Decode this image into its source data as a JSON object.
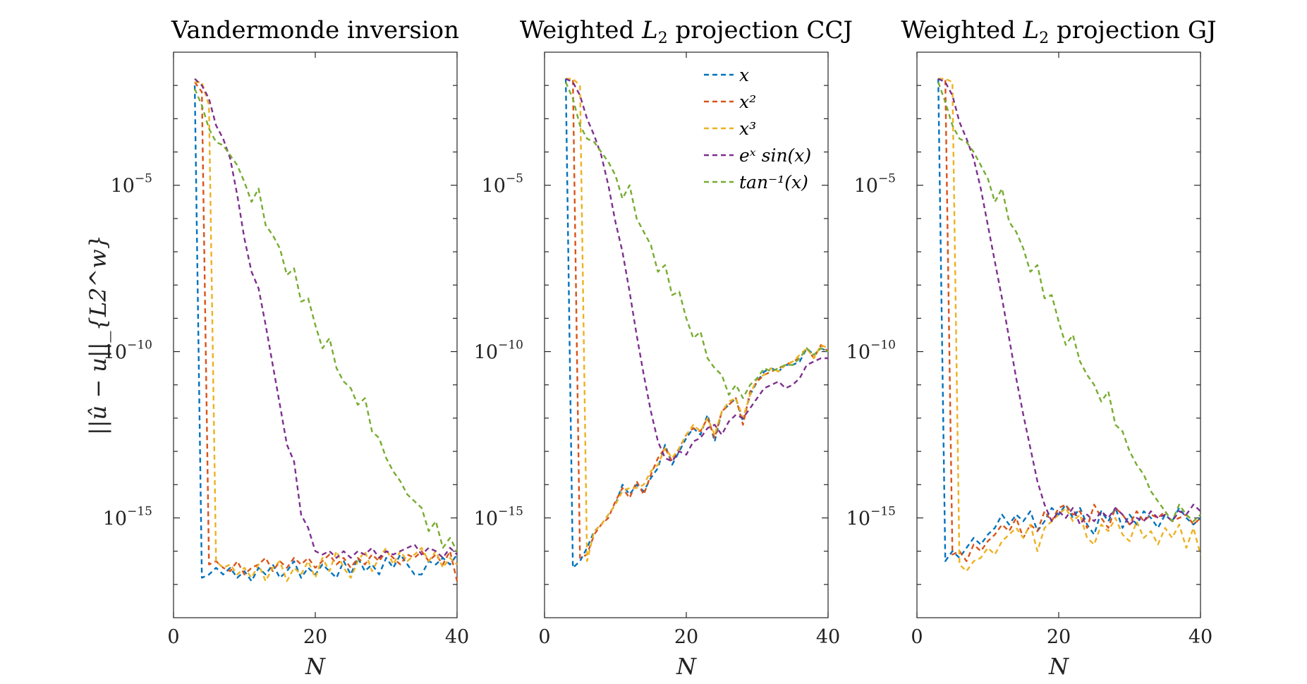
{
  "chart_data": [
    {
      "type": "line",
      "title": "Vandermonde inversion",
      "xlabel": "N",
      "ylabel": "||û − u||_{L2^w}",
      "y_scale": "log",
      "xlim": [
        0,
        40
      ],
      "ylim_exponent": [
        -18,
        -1
      ],
      "x_ticks": [
        "0",
        "20",
        "40"
      ],
      "y_ticks": [
        {
          "base": "10",
          "exp": "−5"
        },
        {
          "base": "10",
          "exp": "−10"
        },
        {
          "base": "10",
          "exp": "−15"
        }
      ],
      "x": [
        3,
        4,
        5,
        6,
        7,
        8,
        9,
        10,
        11,
        12,
        13,
        14,
        15,
        16,
        17,
        18,
        19,
        20,
        21,
        22,
        23,
        24,
        25,
        26,
        27,
        28,
        29,
        30,
        31,
        32,
        33,
        34,
        35,
        36,
        37,
        38,
        39,
        40
      ],
      "series": [
        {
          "name": "x",
          "color": "#0072BD",
          "log10_values": [
            -2.0,
            -16.8,
            -16.7,
            -16.5,
            -16.7,
            -16.5,
            -16.8,
            -16.6,
            -16.9,
            -16.5,
            -16.7,
            -16.4,
            -16.8,
            -16.6,
            -16.3,
            -16.8,
            -16.5,
            -16.7,
            -16.4,
            -16.6,
            -16.8,
            -16.3,
            -16.7,
            -16.2,
            -16.6,
            -16.4,
            -16.7,
            -16.2,
            -16.5,
            -16.1,
            -16.4,
            -16.7,
            -16.7,
            -16.3,
            -16.4,
            -16.2,
            -16.4,
            -16.1
          ]
        },
        {
          "name": "x²",
          "color": "#D95319",
          "log10_values": [
            -1.9,
            -2.2,
            -16.4,
            -16.3,
            -16.5,
            -16.6,
            -16.3,
            -16.7,
            -16.5,
            -16.4,
            -16.2,
            -16.6,
            -16.3,
            -16.5,
            -16.2,
            -16.4,
            -16.2,
            -16.5,
            -16.3,
            -16.1,
            -16.4,
            -16.2,
            -16.5,
            -16.2,
            -16.4,
            -16.1,
            -16.3,
            -16.0,
            -16.2,
            -16.4,
            -16.1,
            -16.2,
            -16.0,
            -16.3,
            -16.1,
            -16.4,
            -16.0,
            -16.9
          ]
        },
        {
          "name": "x³",
          "color": "#EDB120",
          "log10_values": [
            -1.9,
            -1.9,
            -2.6,
            -16.3,
            -16.5,
            -16.4,
            -16.7,
            -16.5,
            -16.8,
            -16.4,
            -16.9,
            -16.5,
            -16.3,
            -16.9,
            -16.5,
            -16.7,
            -16.3,
            -16.8,
            -16.2,
            -16.6,
            -16.0,
            -16.5,
            -16.8,
            -16.3,
            -16.0,
            -16.6,
            -16.2,
            -15.9,
            -16.4,
            -16.0,
            -16.3,
            -16.1,
            -15.9,
            -16.3,
            -16.0,
            -16.5,
            -16.2,
            -16.4
          ]
        },
        {
          "name": "eˣ sin(x)",
          "color": "#7E2F8E",
          "log10_values": [
            -1.8,
            -2.0,
            -2.4,
            -3.2,
            -3.6,
            -4.2,
            -5.3,
            -6.6,
            -7.6,
            -8.1,
            -9.2,
            -10.4,
            -11.6,
            -12.8,
            -13.3,
            -14.9,
            -15.3,
            -16.0,
            -16.1,
            -16.0,
            -16.2,
            -16.0,
            -16.2,
            -16.0,
            -16.1,
            -15.9,
            -16.2,
            -16.0,
            -16.1,
            -16.0,
            -15.9,
            -15.8,
            -16.1,
            -15.9,
            -16.0,
            -16.2,
            -15.9,
            -16.1
          ]
        },
        {
          "name": "tan⁻¹(x)",
          "color": "#77AC30",
          "log10_values": [
            -2.1,
            -2.6,
            -3.3,
            -3.7,
            -3.8,
            -4.1,
            -4.4,
            -4.9,
            -5.5,
            -5.1,
            -6.2,
            -6.5,
            -6.9,
            -7.7,
            -7.5,
            -8.5,
            -8.4,
            -9.2,
            -9.9,
            -9.6,
            -10.5,
            -10.9,
            -11.1,
            -11.6,
            -11.4,
            -12.4,
            -12.6,
            -13.2,
            -13.6,
            -13.9,
            -14.3,
            -14.5,
            -14.7,
            -15.4,
            -15.1,
            -15.9,
            -15.6,
            -16.0
          ]
        }
      ]
    },
    {
      "type": "line",
      "title": "Weighted L2 projection CCJ",
      "xlabel": "N",
      "y_scale": "log",
      "xlim": [
        0,
        40
      ],
      "ylim_exponent": [
        -18,
        -1
      ],
      "x_ticks": [
        "0",
        "20",
        "40"
      ],
      "y_ticks": [
        {
          "base": "10",
          "exp": "−5"
        },
        {
          "base": "10",
          "exp": "−10"
        },
        {
          "base": "10",
          "exp": "−15"
        }
      ],
      "legend_position": "top-right",
      "x": [
        3,
        4,
        5,
        6,
        7,
        8,
        9,
        10,
        11,
        12,
        13,
        14,
        15,
        16,
        17,
        18,
        19,
        20,
        21,
        22,
        23,
        24,
        25,
        26,
        27,
        28,
        29,
        30,
        31,
        32,
        33,
        34,
        35,
        36,
        37,
        38,
        39,
        40
      ],
      "series": [
        {
          "name": "x",
          "color": "#0072BD",
          "log10_values": [
            -1.8,
            -16.5,
            -16.3,
            -15.9,
            -15.4,
            -15.2,
            -14.9,
            -14.6,
            -14.0,
            -14.3,
            -14.0,
            -14.2,
            -13.8,
            -13.5,
            -12.8,
            -13.4,
            -13.0,
            -12.6,
            -12.3,
            -12.5,
            -11.9,
            -12.7,
            -11.8,
            -11.6,
            -11.4,
            -12.1,
            -11.3,
            -10.9,
            -10.6,
            -10.5,
            -10.6,
            -10.4,
            -10.4,
            -10.3,
            -9.9,
            -10.1,
            -9.9,
            -10.0
          ]
        },
        {
          "name": "x²",
          "color": "#D95319",
          "log10_values": [
            -1.8,
            -1.8,
            -16.2,
            -16.1,
            -15.5,
            -15.2,
            -15.0,
            -14.5,
            -14.1,
            -14.4,
            -13.9,
            -14.3,
            -13.7,
            -13.2,
            -12.9,
            -13.3,
            -12.9,
            -12.5,
            -12.3,
            -12.4,
            -12.0,
            -12.6,
            -11.8,
            -11.6,
            -11.4,
            -12.2,
            -11.2,
            -10.9,
            -10.7,
            -10.6,
            -10.5,
            -10.4,
            -10.3,
            -10.2,
            -9.9,
            -10.2,
            -9.8,
            -10.0
          ]
        },
        {
          "name": "x³",
          "color": "#EDB120",
          "log10_values": [
            -1.8,
            -1.8,
            -2.0,
            -16.3,
            -15.4,
            -15.2,
            -14.9,
            -14.6,
            -14.2,
            -14.1,
            -14.1,
            -14.0,
            -13.6,
            -13.4,
            -12.9,
            -13.2,
            -12.9,
            -12.5,
            -12.2,
            -12.4,
            -12.0,
            -12.5,
            -11.8,
            -11.5,
            -11.4,
            -12.0,
            -11.3,
            -10.8,
            -10.7,
            -10.5,
            -10.6,
            -10.4,
            -10.3,
            -10.1,
            -9.9,
            -10.2,
            -9.8,
            -9.9
          ]
        },
        {
          "name": "eˣ sin(x)",
          "color": "#7E2F8E",
          "log10_values": [
            -1.8,
            -1.9,
            -2.3,
            -3.0,
            -3.5,
            -4.1,
            -5.0,
            -6.1,
            -7.0,
            -8.2,
            -9.5,
            -10.7,
            -11.8,
            -12.7,
            -13.2,
            -13.3,
            -13.0,
            -13.1,
            -12.7,
            -12.6,
            -12.3,
            -12.2,
            -12.5,
            -12.1,
            -11.9,
            -12.0,
            -11.7,
            -11.4,
            -11.1,
            -11.0,
            -10.9,
            -11.1,
            -11.0,
            -10.8,
            -10.4,
            -10.3,
            -10.2,
            -10.2
          ]
        },
        {
          "name": "tan⁻¹(x)",
          "color": "#77AC30",
          "log10_values": [
            -1.9,
            -2.4,
            -3.2,
            -3.6,
            -3.7,
            -4.0,
            -4.3,
            -4.7,
            -5.4,
            -5.0,
            -6.0,
            -6.4,
            -6.8,
            -7.6,
            -7.4,
            -8.3,
            -8.2,
            -9.0,
            -9.6,
            -9.4,
            -10.2,
            -10.5,
            -10.7,
            -11.3,
            -11.0,
            -11.4,
            -11.0,
            -10.8,
            -10.5,
            -10.6,
            -10.5,
            -10.4,
            -10.4,
            -10.2,
            -9.9,
            -10.1,
            -9.9,
            -10.0
          ]
        }
      ]
    },
    {
      "type": "line",
      "title": "Weighted L2 projection GJ",
      "xlabel": "N",
      "y_scale": "log",
      "xlim": [
        0,
        40
      ],
      "ylim_exponent": [
        -18,
        -1
      ],
      "x_ticks": [
        "0",
        "20",
        "40"
      ],
      "y_ticks": [
        {
          "base": "10",
          "exp": "−5"
        },
        {
          "base": "10",
          "exp": "−10"
        },
        {
          "base": "10",
          "exp": "−15"
        }
      ],
      "x": [
        3,
        4,
        5,
        6,
        7,
        8,
        9,
        10,
        11,
        12,
        13,
        14,
        15,
        16,
        17,
        18,
        19,
        20,
        21,
        22,
        23,
        24,
        25,
        26,
        27,
        28,
        29,
        30,
        31,
        32,
        33,
        34,
        35,
        36,
        37,
        38,
        39,
        40
      ],
      "series": [
        {
          "name": "x",
          "color": "#0072BD",
          "log10_values": [
            -1.8,
            -16.3,
            -16.0,
            -16.2,
            -15.9,
            -15.6,
            -15.8,
            -15.5,
            -15.3,
            -14.9,
            -15.2,
            -14.9,
            -15.1,
            -14.8,
            -15.4,
            -15.1,
            -14.7,
            -14.9,
            -14.6,
            -15.0,
            -14.7,
            -15.2,
            -15.5,
            -14.8,
            -15.1,
            -14.7,
            -15.3,
            -14.9,
            -15.2,
            -14.8,
            -15.0,
            -15.3,
            -14.9,
            -15.1,
            -14.7,
            -15.0,
            -15.2,
            -15.0
          ]
        },
        {
          "name": "x²",
          "color": "#D95319",
          "log10_values": [
            -1.8,
            -1.8,
            -16.1,
            -16.0,
            -16.3,
            -15.8,
            -16.0,
            -15.7,
            -15.5,
            -15.2,
            -15.4,
            -15.0,
            -15.6,
            -15.2,
            -15.4,
            -14.8,
            -15.1,
            -14.7,
            -14.6,
            -14.9,
            -14.8,
            -15.3,
            -14.6,
            -15.0,
            -15.3,
            -14.7,
            -14.9,
            -15.2,
            -14.8,
            -15.1,
            -14.9,
            -15.0,
            -14.8,
            -15.1,
            -15.0,
            -14.9,
            -15.2,
            -15.0
          ]
        },
        {
          "name": "x³",
          "color": "#EDB120",
          "log10_values": [
            -1.8,
            -1.8,
            -1.9,
            -16.4,
            -16.6,
            -16.3,
            -16.2,
            -15.9,
            -16.1,
            -15.7,
            -15.5,
            -15.3,
            -15.6,
            -15.2,
            -16.0,
            -15.3,
            -15.1,
            -14.9,
            -14.7,
            -15.1,
            -14.9,
            -15.6,
            -15.8,
            -15.2,
            -15.4,
            -15.0,
            -15.5,
            -15.7,
            -15.1,
            -15.6,
            -15.4,
            -15.8,
            -15.3,
            -15.6,
            -15.2,
            -15.9,
            -15.3,
            -16.1
          ]
        },
        {
          "name": "eˣ sin(x)",
          "color": "#7E2F8E",
          "log10_values": [
            -1.8,
            -1.9,
            -2.3,
            -3.1,
            -3.6,
            -4.2,
            -5.1,
            -6.2,
            -7.3,
            -8.4,
            -9.6,
            -10.8,
            -11.9,
            -12.9,
            -13.9,
            -14.6,
            -15.1,
            -14.8,
            -15.0,
            -14.7,
            -15.2,
            -14.9,
            -15.1,
            -14.8,
            -15.0,
            -14.7,
            -14.9,
            -15.2,
            -15.0,
            -15.1,
            -14.8,
            -15.0,
            -14.9,
            -15.1,
            -14.8,
            -14.9,
            -14.6,
            -14.8
          ]
        },
        {
          "name": "tan⁻¹(x)",
          "color": "#77AC30",
          "log10_values": [
            -1.9,
            -2.5,
            -3.2,
            -3.6,
            -3.7,
            -4.0,
            -4.4,
            -4.8,
            -5.5,
            -5.1,
            -6.1,
            -6.4,
            -6.9,
            -7.6,
            -7.4,
            -8.4,
            -8.3,
            -9.1,
            -9.8,
            -9.5,
            -10.3,
            -10.7,
            -11.0,
            -11.5,
            -11.2,
            -12.2,
            -12.4,
            -13.0,
            -13.4,
            -13.7,
            -14.2,
            -14.5,
            -14.8,
            -15.1,
            -14.6,
            -14.9,
            -15.1,
            -14.9
          ]
        }
      ]
    }
  ]
}
